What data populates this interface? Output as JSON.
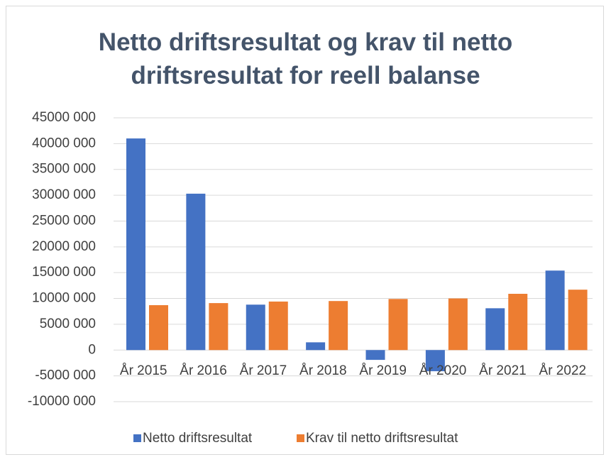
{
  "chart_data": {
    "type": "bar",
    "title": "Netto driftsresultat og krav til netto driftsresultat for reell balanse",
    "categories": [
      "År 2015",
      "År 2016",
      "År 2017",
      "År 2018",
      "År 2019",
      "År 2020",
      "År 2021",
      "År 2022"
    ],
    "series": [
      {
        "name": "Netto driftsresultat",
        "color": "#4472c4",
        "values": [
          41000000,
          30300000,
          8800000,
          1500000,
          -1900000,
          -4100000,
          8100000,
          15400000
        ]
      },
      {
        "name": "Krav til netto driftsresultat",
        "color": "#ed7d31",
        "values": [
          8700000,
          9100000,
          9400000,
          9500000,
          9900000,
          10000000,
          10900000,
          11700000
        ]
      }
    ],
    "ylim": [
      -10000000,
      45000000
    ],
    "yticks": [
      {
        "value": -10000000,
        "label": "-10000 000"
      },
      {
        "value": -5000000,
        "label": "-5000 000"
      },
      0,
      {
        "value": 5000000,
        "label": "5000 000"
      },
      {
        "value": 10000000,
        "label": "10000 000"
      },
      {
        "value": 15000000,
        "label": "15000 000"
      },
      {
        "value": 20000000,
        "label": "20000 000"
      },
      {
        "value": 25000000,
        "label": "25000 000"
      },
      {
        "value": 30000000,
        "label": "30000 000"
      },
      {
        "value": 35000000,
        "label": "35000 000"
      },
      {
        "value": 40000000,
        "label": "40000 000"
      },
      {
        "value": 45000000,
        "label": "45000 000"
      }
    ],
    "grid": true,
    "negative_tick_color": "#ff0000",
    "legend": "bottom"
  }
}
